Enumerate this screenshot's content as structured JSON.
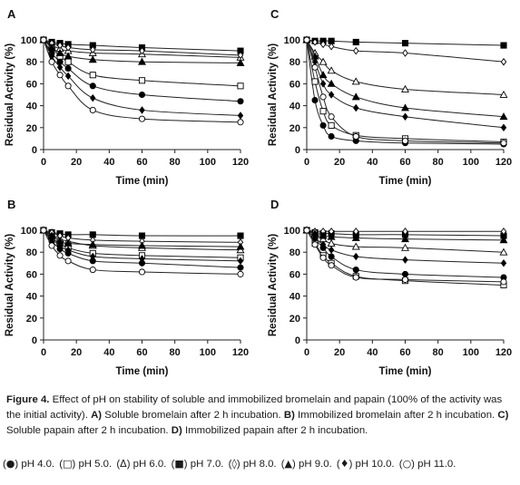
{
  "caption": {
    "label": "Figure 4.",
    "text": "Effect of pH on stability of soluble and immobilized bromelain and papain (100% of the activity was the initial activity).",
    "parts": [
      {
        "letter": "A)",
        "text": "Soluble bromelain after 2 h incubation."
      },
      {
        "letter": "B)",
        "text": "Immobilized bromelain  after 2 h incubation."
      },
      {
        "letter": "C)",
        "text": "Soluble papain after 2 h incubation."
      },
      {
        "letter": "D)",
        "text": "Immobilized papain after 2 h incubation."
      }
    ]
  },
  "legend": [
    {
      "marker": "circle-filled",
      "symbol": "●",
      "label": "pH 4.0."
    },
    {
      "marker": "square-open",
      "symbol": "□",
      "label": "pH 5.0."
    },
    {
      "marker": "triangle-open",
      "symbol": "Δ",
      "label": "pH 6.0."
    },
    {
      "marker": "square-filled",
      "symbol": "■",
      "label": "pH 7.0."
    },
    {
      "marker": "diamond-open",
      "symbol": "◊",
      "label": "pH 8.0."
    },
    {
      "marker": "triangle-filled",
      "symbol": "▲",
      "label": "pH 9.0."
    },
    {
      "marker": "diamond-filled",
      "symbol": "♦",
      "label": "pH 10.0."
    },
    {
      "marker": "circle-open",
      "symbol": "○",
      "label": "pH 11.0."
    }
  ],
  "chart_data": [
    {
      "panel": "A",
      "type": "line",
      "xlabel": "Time (min)",
      "ylabel": "Residual Activity (%)",
      "xlim": [
        0,
        120
      ],
      "ylim": [
        0,
        100
      ],
      "xticks": [
        0,
        20,
        40,
        60,
        80,
        100,
        120
      ],
      "yticks": [
        0,
        20,
        40,
        60,
        80,
        100
      ],
      "x": [
        0,
        5,
        10,
        15,
        30,
        60,
        120
      ],
      "series": [
        {
          "marker": "circle-filled",
          "values": [
            100,
            88,
            80,
            74,
            58,
            50,
            44
          ]
        },
        {
          "marker": "square-open",
          "values": [
            100,
            93,
            85,
            80,
            68,
            63,
            58
          ]
        },
        {
          "marker": "triangle-open",
          "values": [
            100,
            95,
            92,
            90,
            88,
            87,
            84
          ]
        },
        {
          "marker": "square-filled",
          "values": [
            100,
            98,
            97,
            96,
            95,
            93,
            90
          ]
        },
        {
          "marker": "diamond-open",
          "values": [
            100,
            97,
            95,
            93,
            91,
            90,
            86
          ]
        },
        {
          "marker": "triangle-filled",
          "values": [
            100,
            93,
            88,
            85,
            82,
            80,
            79
          ]
        },
        {
          "marker": "diamond-filled",
          "values": [
            100,
            85,
            75,
            67,
            47,
            36,
            31
          ]
        },
        {
          "marker": "circle-open",
          "values": [
            100,
            80,
            68,
            58,
            36,
            28,
            25
          ]
        }
      ]
    },
    {
      "panel": "B",
      "type": "line",
      "xlabel": "Time (min)",
      "ylabel": "Residual Activity (%)",
      "xlim": [
        0,
        120
      ],
      "ylim": [
        0,
        100
      ],
      "xticks": [
        0,
        20,
        40,
        60,
        80,
        100,
        120
      ],
      "yticks": [
        0,
        20,
        40,
        60,
        80,
        100
      ],
      "x": [
        0,
        5,
        10,
        15,
        30,
        60,
        120
      ],
      "series": [
        {
          "marker": "circle-filled",
          "values": [
            100,
            90,
            83,
            79,
            72,
            70,
            66
          ]
        },
        {
          "marker": "square-open",
          "values": [
            100,
            93,
            88,
            84,
            79,
            77,
            75
          ]
        },
        {
          "marker": "triangle-open",
          "values": [
            100,
            96,
            92,
            90,
            86,
            84,
            82
          ]
        },
        {
          "marker": "square-filled",
          "values": [
            100,
            98,
            97,
            96,
            96,
            95,
            95
          ]
        },
        {
          "marker": "diamond-open",
          "values": [
            100,
            98,
            95,
            93,
            91,
            90,
            89
          ]
        },
        {
          "marker": "triangle-filled",
          "values": [
            100,
            95,
            90,
            88,
            87,
            86,
            85
          ]
        },
        {
          "marker": "diamond-filled",
          "values": [
            100,
            92,
            86,
            82,
            76,
            74,
            72
          ]
        },
        {
          "marker": "circle-open",
          "values": [
            100,
            86,
            77,
            72,
            64,
            62,
            60
          ]
        }
      ]
    },
    {
      "panel": "C",
      "type": "line",
      "xlabel": "Time (min)",
      "ylabel": "Residual Activity (%)",
      "xlim": [
        0,
        120
      ],
      "ylim": [
        0,
        100
      ],
      "xticks": [
        0,
        20,
        40,
        60,
        80,
        100,
        120
      ],
      "yticks": [
        0,
        20,
        40,
        60,
        80,
        100
      ],
      "x": [
        0,
        5,
        10,
        15,
        30,
        60,
        120
      ],
      "series": [
        {
          "marker": "circle-filled",
          "values": [
            100,
            45,
            22,
            12,
            8,
            6,
            5
          ]
        },
        {
          "marker": "square-open",
          "values": [
            100,
            62,
            35,
            22,
            13,
            10,
            7
          ]
        },
        {
          "marker": "triangle-open",
          "values": [
            100,
            88,
            80,
            72,
            62,
            55,
            50
          ]
        },
        {
          "marker": "square-filled",
          "values": [
            100,
            99,
            99,
            99,
            98,
            97,
            95
          ]
        },
        {
          "marker": "diamond-open",
          "values": [
            100,
            98,
            96,
            94,
            90,
            88,
            80
          ]
        },
        {
          "marker": "triangle-filled",
          "values": [
            100,
            85,
            68,
            60,
            48,
            38,
            30
          ]
        },
        {
          "marker": "diamond-filled",
          "values": [
            100,
            80,
            60,
            50,
            38,
            30,
            20
          ]
        },
        {
          "marker": "circle-open",
          "values": [
            100,
            75,
            48,
            30,
            12,
            8,
            6
          ]
        }
      ]
    },
    {
      "panel": "D",
      "type": "line",
      "xlabel": "Time (min)",
      "ylabel": "Residual Activity (%)",
      "xlim": [
        0,
        120
      ],
      "ylim": [
        0,
        100
      ],
      "xticks": [
        0,
        20,
        40,
        60,
        80,
        100,
        120
      ],
      "yticks": [
        0,
        20,
        40,
        60,
        80,
        100
      ],
      "x": [
        0,
        5,
        10,
        15,
        30,
        60,
        120
      ],
      "series": [
        {
          "marker": "circle-filled",
          "values": [
            100,
            92,
            84,
            76,
            64,
            60,
            57
          ]
        },
        {
          "marker": "square-open",
          "values": [
            100,
            88,
            77,
            70,
            58,
            54,
            50
          ]
        },
        {
          "marker": "triangle-open",
          "values": [
            100,
            96,
            92,
            88,
            85,
            84,
            80
          ]
        },
        {
          "marker": "square-filled",
          "values": [
            100,
            98,
            97,
            97,
            96,
            96,
            95
          ]
        },
        {
          "marker": "diamond-open",
          "values": [
            100,
            99,
            99,
            99,
            99,
            99,
            99
          ]
        },
        {
          "marker": "triangle-filled",
          "values": [
            100,
            97,
            95,
            94,
            93,
            92,
            91
          ]
        },
        {
          "marker": "diamond-filled",
          "values": [
            100,
            93,
            87,
            82,
            76,
            73,
            70
          ]
        },
        {
          "marker": "circle-open",
          "values": [
            100,
            87,
            75,
            68,
            57,
            55,
            53
          ]
        }
      ]
    }
  ]
}
